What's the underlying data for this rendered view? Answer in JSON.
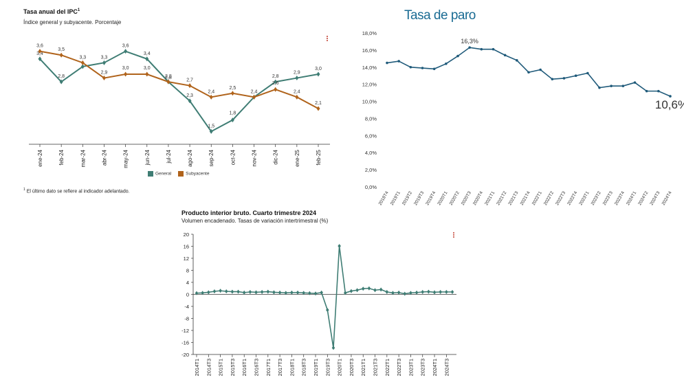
{
  "ipc": {
    "title": "Tasa anual del IPC",
    "title_sup": "1",
    "subtitle": "Índice general y subyacente. Porcentaje",
    "footnote_sup": "1",
    "footnote": "El último dato se refiere al indicador adelantado.",
    "menu_icon": "kebab-menu-icon"
  },
  "paro": {
    "title": "Tasa de paro",
    "peak_label": "16,3%",
    "last_label": "10,6%"
  },
  "pib": {
    "title": "Producto interior bruto. Cuarto trimestre 2024",
    "subtitle": "Volumen encadenado. Tasas de variación intertrimestral (%)",
    "menu_icon": "kebab-menu-icon"
  },
  "colors": {
    "general": "#3f7d74",
    "subyacente": "#b0631b",
    "paro": "#1f5a7a",
    "pib": "#3f7d74",
    "paro_title": "#1a6b93",
    "menu": "#c0392b"
  },
  "chart_data": [
    {
      "type": "line",
      "title": "Tasa anual del IPC",
      "categories": [
        "ene-24",
        "feb-24",
        "mar-24",
        "abr-24",
        "may-24",
        "jun-24",
        "jul-24",
        "ago-24",
        "sep-24",
        "oct-24",
        "nov-24",
        "dic-24",
        "ene-25",
        "feb-25"
      ],
      "series": [
        {
          "name": "General",
          "values": [
            3.4,
            2.8,
            3.2,
            3.3,
            3.6,
            3.4,
            2.8,
            2.3,
            1.5,
            1.8,
            2.4,
            2.8,
            2.9,
            3.0
          ]
        },
        {
          "name": "Subyacente",
          "values": [
            3.6,
            3.5,
            3.3,
            2.9,
            3.0,
            3.0,
            2.8,
            2.7,
            2.4,
            2.5,
            2.4,
            2.6,
            2.4,
            2.1
          ]
        }
      ],
      "value_labels": {
        "General": [
          "3,4",
          "2,8",
          "",
          "3,3",
          "3,6",
          "3,4",
          "2,8",
          "2,3",
          "1,5",
          "1,8",
          "2,4",
          "2,8",
          "2,9",
          "3,0"
        ],
        "Subyacente": [
          "3,6",
          "3,5",
          "3,3",
          "2,9",
          "3,0",
          "3,0",
          "2,8",
          "2,7",
          "2,4",
          "2,5",
          "",
          "2,6",
          "2,4",
          "2,1"
        ]
      },
      "legend": [
        "General",
        "Subyacente"
      ],
      "ylim": [
        1.2,
        3.9
      ],
      "grid": false,
      "legend_position": "bottom"
    },
    {
      "type": "line",
      "title": "Tasa de paro",
      "categories": [
        "2018T4",
        "2019T1",
        "2019T2",
        "2019T3",
        "2019T4",
        "2020T1",
        "2020T2",
        "2020T3",
        "2020T4",
        "2021T1",
        "2021T2",
        "2021T3",
        "2021T4",
        "2022T1",
        "2022T2",
        "2022T3",
        "2022T4",
        "2023T1",
        "2023T2",
        "2023T3",
        "2023T4",
        "2024T1",
        "2024T2",
        "2024T3",
        "2024T4"
      ],
      "tick_labels": [
        "2018T4",
        "2019T1",
        "2019T2",
        "2019T3",
        "2019T4",
        "2020T1",
        "2020T2",
        "2020T3",
        "2020T4",
        "2021T1",
        "2021T2",
        "2021T3",
        "2021T4",
        "2022T1",
        "2022T2",
        "2022T3",
        "2022T4",
        "2023T1",
        "2023T2",
        "2023T3",
        "2023T4",
        "2024T1",
        "2024T2",
        "2024T3",
        "2024T4"
      ],
      "values": [
        14.5,
        14.7,
        14.0,
        13.9,
        13.8,
        14.4,
        15.3,
        16.3,
        16.1,
        16.1,
        15.4,
        14.8,
        13.4,
        13.7,
        12.6,
        12.7,
        13.0,
        13.3,
        11.6,
        11.8,
        11.8,
        12.2,
        11.2,
        11.2,
        10.6
      ],
      "yticks": [
        "0,0%",
        "2,0%",
        "4,0%",
        "6,0%",
        "8,0%",
        "10,0%",
        "12,0%",
        "14,0%",
        "16,0%",
        "18,0%"
      ],
      "ylim": [
        0,
        18
      ],
      "grid": false
    },
    {
      "type": "line",
      "title": "Producto interior bruto. Cuarto trimestre 2024",
      "categories": [
        "2014T1",
        "2014T2",
        "2014T3",
        "2014T4",
        "2015T1",
        "2015T2",
        "2015T3",
        "2015T4",
        "2016T1",
        "2016T2",
        "2016T3",
        "2016T4",
        "2017T1",
        "2017T2",
        "2017T3",
        "2017T4",
        "2018T1",
        "2018T2",
        "2018T3",
        "2018T4",
        "2019T1",
        "2019T2",
        "2019T3",
        "2019T4",
        "2020T1",
        "2020T2",
        "2020T3",
        "2020T4",
        "2021T1",
        "2021T2",
        "2021T3",
        "2021T4",
        "2022T1",
        "2022T2",
        "2022T3",
        "2022T4",
        "2023T1",
        "2023T2",
        "2023T3",
        "2023T4",
        "2024T1",
        "2024T2",
        "2024T3",
        "2024T4"
      ],
      "tick_labels": [
        "2014T1",
        "2014T3",
        "2015T1",
        "2015T3",
        "2016T1",
        "2016T3",
        "2017T1",
        "2017T3",
        "2018T1",
        "2018T3",
        "2019T1",
        "2019T3",
        "2020T1",
        "2020T3",
        "2021T1",
        "2021T3",
        "2022T1",
        "2022T3",
        "2023T1",
        "2023T3",
        "2024T1",
        "2024T3"
      ],
      "values": [
        0.4,
        0.5,
        0.7,
        1.0,
        1.2,
        1.0,
        0.9,
        0.9,
        0.6,
        0.8,
        0.7,
        0.8,
        0.9,
        0.7,
        0.6,
        0.5,
        0.6,
        0.6,
        0.5,
        0.4,
        0.3,
        0.6,
        -5.2,
        -17.8,
        16.1,
        0.5,
        1.1,
        1.4,
        1.9,
        2.0,
        1.4,
        1.6,
        0.8,
        0.5,
        0.6,
        0.2,
        0.5,
        0.6,
        0.8,
        0.9,
        0.7,
        0.8,
        0.8,
        0.8
      ],
      "yticks": [
        "-20",
        "-16",
        "-12",
        "-8",
        "-4",
        "0",
        "4",
        "8",
        "12",
        "16",
        "20"
      ],
      "ylim": [
        -20,
        20
      ],
      "grid": false
    }
  ]
}
